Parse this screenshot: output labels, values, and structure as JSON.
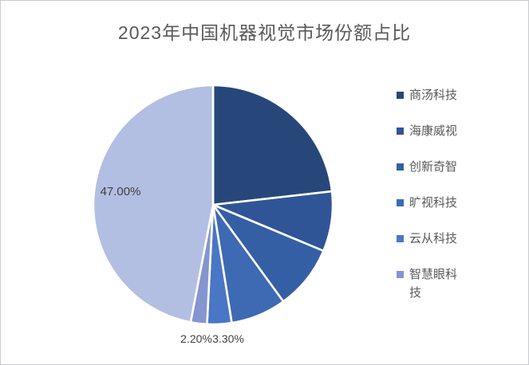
{
  "chart_data": {
    "type": "pie",
    "title": "2023年中国机器视觉市场份额占比",
    "legend_position": "right",
    "start_angle_deg": 0,
    "direction": "clockwise",
    "units": "percent",
    "slices": [
      {
        "name": "商汤科技",
        "value": 23.2,
        "label": "",
        "color": "#27477A"
      },
      {
        "name": "海康威视",
        "value": 8.1,
        "label": "",
        "color": "#2F5597"
      },
      {
        "name": "创新奇智",
        "value": 8.7,
        "label": "",
        "color": "#355FA4"
      },
      {
        "name": "旷视科技",
        "value": 7.5,
        "label": "",
        "color": "#3D6AB2"
      },
      {
        "name": "云从科技",
        "value": 3.3,
        "label": "3.30%",
        "color": "#4A76C6"
      },
      {
        "name": "智慧眼科技",
        "value": 2.2,
        "label": "2.20%",
        "color": "#8495CF"
      },
      {
        "name": "",
        "value": 47.0,
        "label": "47.00%",
        "color": "#B2BFE2"
      }
    ],
    "visible_data_labels": [
      "47.00%",
      "2.20%",
      "3.30%"
    ],
    "legend_entries": [
      "商汤科技",
      "海康威视",
      "创新奇智",
      "旷视科技",
      "云从科技",
      "智慧眼科技"
    ]
  },
  "colors": {
    "title_text": "#595959",
    "data_label_text": "#3F3F3F",
    "legend_text": "#595959",
    "background": "#FFFFFF",
    "slice_divider": "#FFFFFF"
  }
}
